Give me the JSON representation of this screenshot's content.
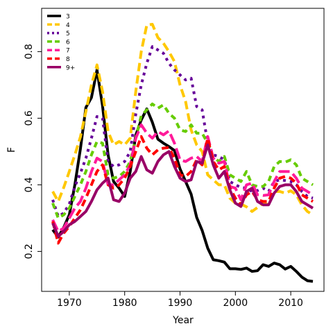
{
  "chart_data": {
    "type": "line",
    "xlabel": "Year",
    "ylabel": "F",
    "xlim": [
      1965,
      2016
    ],
    "ylim": [
      0.08,
      0.93
    ],
    "x_ticks": [
      1970,
      1980,
      1990,
      2000,
      2010
    ],
    "y_ticks": [
      0.2,
      0.4,
      0.6,
      0.8
    ],
    "legend_position": "top-left",
    "x": [
      1967,
      1968,
      1969,
      1970,
      1971,
      1972,
      1973,
      1974,
      1975,
      1976,
      1977,
      1978,
      1979,
      1980,
      1981,
      1982,
      1983,
      1984,
      1985,
      1986,
      1987,
      1988,
      1989,
      1990,
      1991,
      1992,
      1993,
      1994,
      1995,
      1996,
      1997,
      1998,
      1999,
      2000,
      2001,
      2002,
      2003,
      2004,
      2005,
      2006,
      2007,
      2008,
      2009,
      2010,
      2011,
      2012,
      2013,
      2014
    ],
    "series": [
      {
        "name": "3",
        "color": "#000000",
        "dash": "solid",
        "values": [
          0.265,
          0.243,
          0.272,
          0.31,
          0.4,
          0.508,
          0.632,
          0.662,
          0.745,
          0.637,
          0.49,
          0.41,
          0.39,
          0.365,
          0.44,
          0.549,
          0.595,
          0.628,
          0.588,
          0.537,
          0.525,
          0.515,
          0.503,
          0.448,
          0.41,
          0.372,
          0.302,
          0.263,
          0.21,
          0.175,
          0.172,
          0.168,
          0.148,
          0.148,
          0.146,
          0.15,
          0.14,
          0.142,
          0.16,
          0.155,
          0.165,
          0.16,
          0.147,
          0.155,
          0.14,
          0.123,
          0.112,
          0.11
        ]
      },
      {
        "name": "4",
        "color": "#ffc800",
        "dash": "12,6",
        "values": [
          0.38,
          0.35,
          0.392,
          0.44,
          0.49,
          0.544,
          0.62,
          0.7,
          0.76,
          0.68,
          0.56,
          0.52,
          0.53,
          0.52,
          0.54,
          0.68,
          0.8,
          0.88,
          0.882,
          0.842,
          0.825,
          0.8,
          0.77,
          0.7,
          0.65,
          0.565,
          0.52,
          0.5,
          0.43,
          0.415,
          0.4,
          0.4,
          0.36,
          0.345,
          0.342,
          0.334,
          0.32,
          0.332,
          0.345,
          0.34,
          0.38,
          0.38,
          0.375,
          0.382,
          0.37,
          0.34,
          0.32,
          0.31
        ]
      },
      {
        "name": "5",
        "color": "#660099",
        "dash": "4,6",
        "values": [
          0.355,
          0.305,
          0.315,
          0.342,
          0.395,
          0.435,
          0.48,
          0.54,
          0.605,
          0.6,
          0.47,
          0.455,
          0.46,
          0.47,
          0.5,
          0.612,
          0.7,
          0.765,
          0.815,
          0.805,
          0.795,
          0.765,
          0.745,
          0.73,
          0.715,
          0.72,
          0.635,
          0.625,
          0.525,
          0.49,
          0.485,
          0.475,
          0.41,
          0.4,
          0.392,
          0.39,
          0.38,
          0.383,
          0.39,
          0.38,
          0.41,
          0.415,
          0.413,
          0.41,
          0.4,
          0.38,
          0.365,
          0.36
        ]
      },
      {
        "name": "6",
        "color": "#66cc00",
        "dash": "8,6",
        "values": [
          0.345,
          0.3,
          0.31,
          0.33,
          0.365,
          0.4,
          0.44,
          0.49,
          0.53,
          0.525,
          0.43,
          0.42,
          0.425,
          0.44,
          0.47,
          0.54,
          0.608,
          0.625,
          0.643,
          0.63,
          0.64,
          0.615,
          0.6,
          0.565,
          0.56,
          0.58,
          0.555,
          0.555,
          0.525,
          0.485,
          0.47,
          0.485,
          0.43,
          0.42,
          0.41,
          0.44,
          0.4,
          0.395,
          0.395,
          0.41,
          0.455,
          0.47,
          0.468,
          0.475,
          0.46,
          0.42,
          0.41,
          0.4
        ]
      },
      {
        "name": "7",
        "color": "#ff1a99",
        "dash": "16,6",
        "values": [
          0.295,
          0.26,
          0.27,
          0.3,
          0.33,
          0.35,
          0.39,
          0.44,
          0.48,
          0.47,
          0.4,
          0.4,
          0.415,
          0.43,
          0.46,
          0.54,
          0.58,
          0.555,
          0.54,
          0.56,
          0.55,
          0.562,
          0.525,
          0.475,
          0.47,
          0.48,
          0.485,
          0.47,
          0.545,
          0.48,
          0.465,
          0.47,
          0.395,
          0.39,
          0.355,
          0.4,
          0.405,
          0.37,
          0.368,
          0.37,
          0.41,
          0.44,
          0.44,
          0.44,
          0.42,
          0.39,
          0.38,
          0.37
        ]
      },
      {
        "name": "8",
        "color": "#ff0000",
        "dash": "10,6",
        "values": [
          0.29,
          0.225,
          0.255,
          0.275,
          0.3,
          0.325,
          0.36,
          0.4,
          0.44,
          0.46,
          0.4,
          0.39,
          0.4,
          0.42,
          0.455,
          0.5,
          0.545,
          0.51,
          0.49,
          0.505,
          0.51,
          0.512,
          0.48,
          0.43,
          0.425,
          0.44,
          0.475,
          0.46,
          0.54,
          0.47,
          0.445,
          0.455,
          0.39,
          0.36,
          0.34,
          0.37,
          0.38,
          0.355,
          0.35,
          0.35,
          0.39,
          0.42,
          0.425,
          0.42,
          0.405,
          0.37,
          0.36,
          0.35
        ]
      },
      {
        "name": "9+",
        "color": "#990066",
        "dash": "solid",
        "values": [
          0.285,
          0.245,
          0.26,
          0.28,
          0.29,
          0.305,
          0.32,
          0.35,
          0.385,
          0.405,
          0.42,
          0.355,
          0.35,
          0.375,
          0.42,
          0.44,
          0.485,
          0.445,
          0.435,
          0.47,
          0.49,
          0.5,
          0.455,
          0.42,
          0.41,
          0.415,
          0.47,
          0.465,
          0.52,
          0.46,
          0.42,
          0.44,
          0.385,
          0.345,
          0.335,
          0.38,
          0.39,
          0.35,
          0.34,
          0.34,
          0.375,
          0.395,
          0.4,
          0.4,
          0.38,
          0.35,
          0.34,
          0.33
        ]
      }
    ]
  }
}
